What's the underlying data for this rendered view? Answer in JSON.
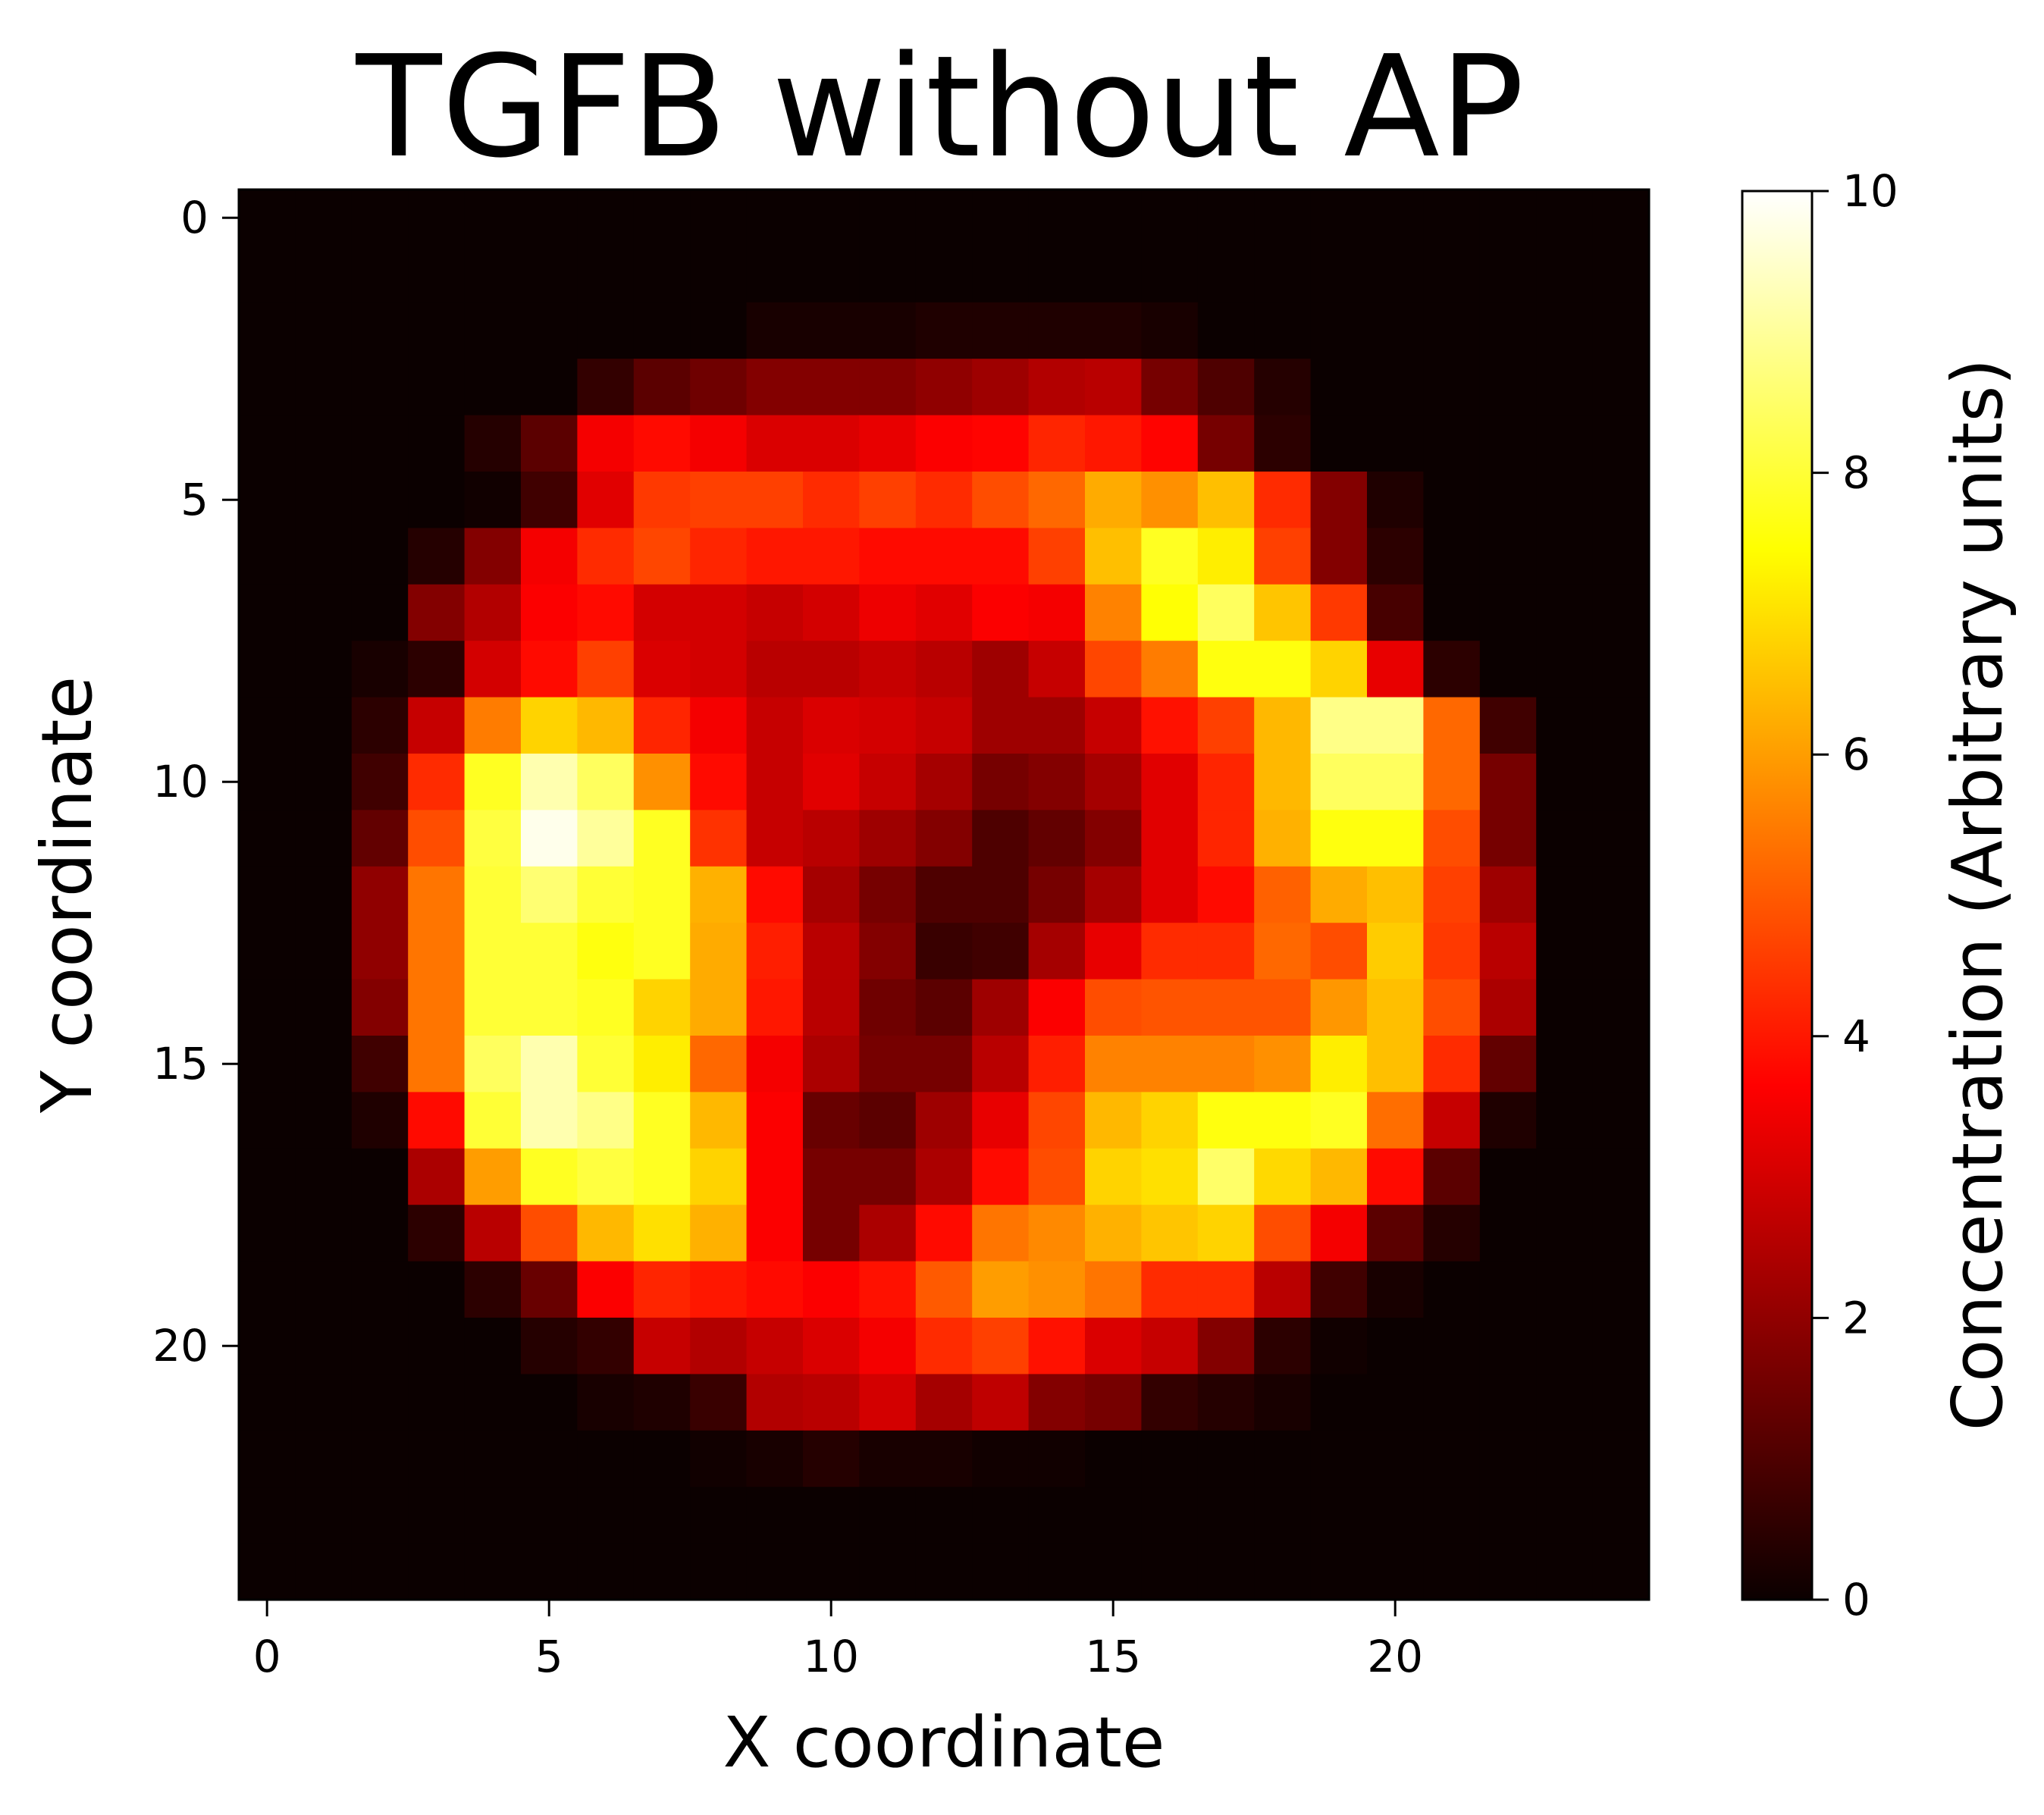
{
  "chart_data": {
    "type": "heatmap",
    "title": "TGFB without AP",
    "xlabel": "X coordinate",
    "ylabel": "Y coordinate",
    "colorbar_label": "Concentration (Arbitrary units)",
    "colormap": "hot",
    "vmin": 0,
    "vmax": 10,
    "x_range": [
      -0.5,
      24.5
    ],
    "y_range": [
      -0.5,
      24.5
    ],
    "y_inverted": true,
    "x_ticks": [
      0,
      5,
      10,
      15,
      20
    ],
    "y_ticks": [
      0,
      5,
      10,
      15,
      20
    ],
    "colorbar_ticks": [
      0,
      2,
      4,
      6,
      8,
      10
    ],
    "grid_size": [
      25,
      25
    ],
    "values": [
      [
        0,
        0,
        0,
        0,
        0,
        0,
        0,
        0,
        0,
        0,
        0,
        0,
        0,
        0,
        0,
        0,
        0,
        0,
        0,
        0,
        0,
        0,
        0,
        0,
        0
      ],
      [
        0,
        0,
        0,
        0,
        0,
        0,
        0,
        0,
        0,
        0,
        0,
        0,
        0,
        0,
        0,
        0,
        0,
        0,
        0,
        0,
        0,
        0,
        0,
        0,
        0
      ],
      [
        0,
        0,
        0,
        0,
        0,
        0,
        0,
        0,
        0,
        0.2,
        0.2,
        0.2,
        0.3,
        0.3,
        0.3,
        0.3,
        0.2,
        0,
        0,
        0,
        0,
        0,
        0,
        0,
        0
      ],
      [
        0,
        0,
        0,
        0,
        0,
        0,
        0.6,
        1.2,
        1.5,
        1.8,
        1.8,
        1.8,
        2.0,
        2.2,
        2.5,
        2.6,
        1.6,
        1.0,
        0.4,
        0,
        0,
        0,
        0,
        0,
        0
      ],
      [
        0,
        0,
        0,
        0,
        0.4,
        1.2,
        3.5,
        3.8,
        3.5,
        3.1,
        3.1,
        3.3,
        3.6,
        3.7,
        4.2,
        4.0,
        3.7,
        1.6,
        0.5,
        0,
        0,
        0,
        0,
        0,
        0
      ],
      [
        0,
        0,
        0,
        0,
        0.1,
        0.8,
        3.2,
        4.5,
        4.6,
        4.6,
        4.3,
        4.6,
        4.3,
        4.8,
        5.2,
        6.2,
        5.8,
        6.5,
        4.3,
        1.8,
        0.3,
        0,
        0,
        0,
        0
      ],
      [
        0,
        0,
        0,
        0.4,
        1.8,
        3.5,
        4.3,
        4.7,
        4.2,
        4.0,
        4.0,
        3.8,
        3.8,
        3.8,
        4.6,
        6.5,
        7.8,
        7.2,
        4.6,
        1.8,
        0.5,
        0,
        0,
        0,
        0
      ],
      [
        0,
        0,
        0,
        1.8,
        2.5,
        3.6,
        3.8,
        3.0,
        3.0,
        2.8,
        3.0,
        3.4,
        3.2,
        3.6,
        3.5,
        5.6,
        7.5,
        8.4,
        6.6,
        4.5,
        0.9,
        0,
        0,
        0,
        0
      ],
      [
        0,
        0,
        0.2,
        0.5,
        3.0,
        3.8,
        4.6,
        3.1,
        3.0,
        2.6,
        2.6,
        2.8,
        2.6,
        2.2,
        2.8,
        4.7,
        5.5,
        7.6,
        7.6,
        6.8,
        3.3,
        0.5,
        0,
        0,
        0
      ],
      [
        0,
        0,
        0.5,
        2.8,
        5.5,
        6.8,
        6.4,
        4.2,
        3.5,
        2.8,
        3.1,
        3.0,
        2.8,
        2.2,
        2.2,
        2.8,
        3.9,
        4.6,
        6.4,
        8.8,
        8.8,
        5.2,
        0.8,
        0,
        0
      ],
      [
        0,
        0,
        0.8,
        4.3,
        7.8,
        9.2,
        8.4,
        5.8,
        3.8,
        2.8,
        3.2,
        2.8,
        2.3,
        1.6,
        1.8,
        2.3,
        3.2,
        4.2,
        6.4,
        8.4,
        8.4,
        5.2,
        1.6,
        0,
        0
      ],
      [
        0,
        0,
        1.3,
        4.8,
        8.1,
        9.8,
        9.0,
        7.8,
        4.4,
        2.8,
        2.6,
        2.2,
        1.8,
        1.0,
        1.3,
        1.8,
        3.2,
        4.2,
        6.3,
        7.6,
        7.6,
        4.8,
        1.6,
        0,
        0
      ],
      [
        0,
        0,
        2.0,
        5.4,
        8.0,
        8.6,
        8.0,
        7.8,
        6.3,
        3.8,
        2.3,
        1.6,
        1.0,
        1.0,
        1.6,
        2.3,
        3.2,
        3.8,
        5.1,
        6.2,
        6.5,
        4.6,
        2.2,
        0,
        0
      ],
      [
        0,
        0,
        2.0,
        5.4,
        8.0,
        8.0,
        7.6,
        7.8,
        6.2,
        4.1,
        2.6,
        1.8,
        0.7,
        0.8,
        2.3,
        3.3,
        4.3,
        4.3,
        5.2,
        4.8,
        6.7,
        4.5,
        2.6,
        0,
        0
      ],
      [
        0,
        0,
        1.8,
        5.4,
        8.0,
        8.0,
        7.8,
        6.8,
        6.2,
        4.0,
        2.6,
        1.5,
        1.2,
        2.2,
        3.6,
        4.8,
        4.9,
        4.9,
        4.9,
        5.9,
        6.5,
        4.8,
        2.4,
        0,
        0
      ],
      [
        0,
        0,
        0.8,
        5.4,
        8.4,
        9.2,
        8.0,
        7.2,
        5.2,
        3.5,
        2.4,
        1.6,
        1.6,
        2.6,
        4.1,
        5.6,
        5.6,
        5.6,
        5.8,
        7.2,
        6.5,
        4.3,
        1.3,
        0,
        0
      ],
      [
        0,
        0,
        0.3,
        3.8,
        8.0,
        9.2,
        8.8,
        7.8,
        6.4,
        3.6,
        1.4,
        1.2,
        2.2,
        3.3,
        4.7,
        6.4,
        6.8,
        7.6,
        7.6,
        7.8,
        5.3,
        2.8,
        0.3,
        0,
        0
      ],
      [
        0,
        0,
        0,
        2.4,
        6.0,
        7.8,
        8.1,
        7.8,
        6.8,
        3.6,
        1.6,
        1.6,
        2.4,
        3.8,
        4.8,
        6.8,
        7.0,
        8.5,
        6.9,
        6.4,
        3.8,
        1.2,
        0,
        0,
        0
      ],
      [
        0,
        0,
        0,
        0.5,
        2.6,
        4.8,
        6.4,
        7.0,
        6.3,
        3.6,
        1.6,
        2.4,
        3.8,
        5.4,
        5.7,
        6.3,
        6.6,
        6.8,
        4.8,
        3.5,
        1.2,
        0.4,
        0,
        0,
        0
      ],
      [
        0,
        0,
        0,
        0,
        0.5,
        1.4,
        3.6,
        4.2,
        4.0,
        3.8,
        3.6,
        3.9,
        5.0,
        6.0,
        5.8,
        5.4,
        4.3,
        4.3,
        2.6,
        0.8,
        0.2,
        0,
        0,
        0,
        0
      ],
      [
        0,
        0,
        0,
        0,
        0,
        0.4,
        0.6,
        2.8,
        2.5,
        2.8,
        3.1,
        3.5,
        4.3,
        4.6,
        3.9,
        3.1,
        2.8,
        1.8,
        0.5,
        0.1,
        0,
        0,
        0,
        0,
        0
      ],
      [
        0,
        0,
        0,
        0,
        0,
        0,
        0.2,
        0.3,
        0.7,
        2.5,
        2.6,
        3.0,
        2.3,
        2.7,
        1.8,
        1.6,
        0.6,
        0.4,
        0.2,
        0,
        0,
        0,
        0,
        0,
        0
      ],
      [
        0,
        0,
        0,
        0,
        0,
        0,
        0,
        0,
        0.1,
        0.2,
        0.4,
        0.2,
        0.2,
        0.1,
        0.1,
        0,
        0,
        0,
        0,
        0,
        0,
        0,
        0,
        0,
        0
      ],
      [
        0,
        0,
        0,
        0,
        0,
        0,
        0,
        0,
        0,
        0,
        0,
        0,
        0,
        0,
        0,
        0,
        0,
        0,
        0,
        0,
        0,
        0,
        0,
        0,
        0
      ],
      [
        0,
        0,
        0,
        0,
        0,
        0,
        0,
        0,
        0,
        0,
        0,
        0,
        0,
        0,
        0,
        0,
        0,
        0,
        0,
        0,
        0,
        0,
        0,
        0,
        0
      ]
    ]
  }
}
